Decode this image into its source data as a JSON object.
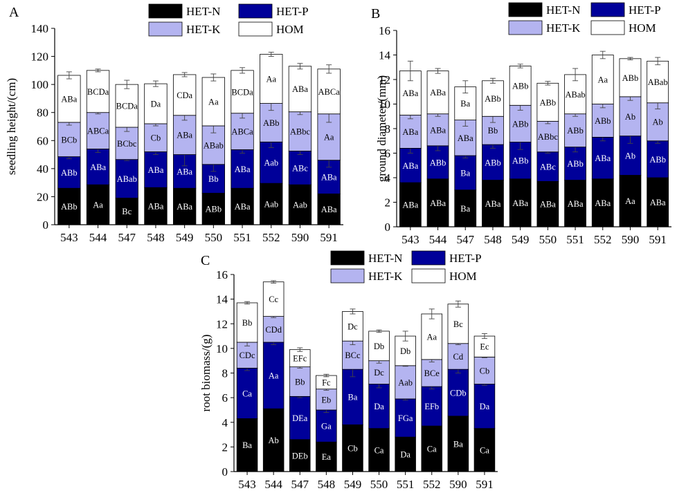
{
  "colors": {
    "HET-N": "#000000",
    "HET-P": "#000099",
    "HET-K": "#b4b4f0",
    "HOM": "#ffffff"
  },
  "chart_data": [
    {
      "panel_label": "A",
      "type": "bar",
      "stacked": true,
      "ylabel": "seedling height/(cm)",
      "xlabel": "",
      "ylim": [
        0,
        140
      ],
      "yticks": [
        "0",
        "20",
        "40",
        "60",
        "80",
        "100",
        "120",
        "140"
      ],
      "categories": [
        "543",
        "544",
        "547",
        "548",
        "549",
        "550",
        "551",
        "552",
        "590",
        "591"
      ],
      "legend": {
        "placement": "top-right",
        "rows": [
          [
            "HET-N",
            "HET-P"
          ],
          [
            "HET-K",
            "HOM"
          ]
        ]
      },
      "series": [
        {
          "name": "HET-N",
          "cumulative_top": [
            26,
            28.5,
            19,
            26.5,
            26,
            22.5,
            26,
            29.5,
            28.5,
            22
          ],
          "labels": [
            "ABb",
            "Aa",
            "Bc",
            "ABa",
            "ABa",
            "ABb",
            "ABa",
            "Aab",
            "Aab",
            "ABa"
          ]
        },
        {
          "name": "HET-P",
          "cumulative_top": [
            48.5,
            54,
            46.5,
            52,
            50,
            43,
            53.5,
            59,
            52.5,
            46
          ],
          "error": [
            1.5,
            2.5,
            0.8,
            2,
            8,
            5,
            2.5,
            4,
            2.5,
            5
          ],
          "labels": [
            "ABb",
            "ABa",
            "ABab",
            "ABa",
            "ABa",
            "Bb",
            "ABa",
            "Aab",
            "ABc",
            "ABa"
          ]
        },
        {
          "name": "HET-K",
          "cumulative_top": [
            73,
            80,
            69.5,
            72,
            78,
            70.5,
            79.5,
            86.5,
            80.5,
            79
          ],
          "error": [
            2,
            1,
            3,
            1.5,
            3.5,
            5,
            3.5,
            5,
            2,
            6
          ],
          "labels": [
            "BCb",
            "ABCa",
            "BCbc",
            "Cb",
            "ABa",
            "ABab",
            "ABCa",
            "ABb",
            "ABbc",
            "Aa"
          ]
        },
        {
          "name": "HOM",
          "cumulative_top": [
            106.5,
            110,
            100,
            100.5,
            107,
            105,
            110,
            121.5,
            113,
            111
          ],
          "error": [
            2.5,
            1,
            3,
            2,
            1.5,
            2.5,
            2,
            1.5,
            2,
            3
          ],
          "labels": [
            "ABa",
            "BCDa",
            "BCDa",
            "Da",
            "CDa",
            "Aa",
            "BCDa",
            "Aa",
            "ABa",
            "ABCa"
          ]
        }
      ]
    },
    {
      "panel_label": "B",
      "type": "bar",
      "stacked": true,
      "ylabel": "ground diameter/(mm)",
      "xlabel": "",
      "ylim": [
        0,
        16
      ],
      "yticks": [
        "0",
        "2",
        "4",
        "6",
        "8",
        "10",
        "12",
        "14",
        "16"
      ],
      "categories": [
        "543",
        "544",
        "547",
        "548",
        "549",
        "550",
        "551",
        "552",
        "590",
        "591"
      ],
      "legend": {
        "placement": "top-right",
        "rows": [
          [
            "HET-N",
            "HET-P"
          ],
          [
            "HET-K",
            "HOM"
          ]
        ]
      },
      "series": [
        {
          "name": "HET-N",
          "cumulative_top": [
            3.6,
            3.9,
            3.0,
            3.8,
            3.9,
            3.7,
            3.8,
            3.9,
            4.2,
            4.0
          ],
          "labels": [
            "ABa",
            "ABa",
            "Ba",
            "ABa",
            "ABa",
            "ABa",
            "ABa",
            "ABa",
            "Aa",
            "ABa"
          ]
        },
        {
          "name": "HET-P",
          "cumulative_top": [
            6.4,
            6.6,
            5.8,
            6.7,
            6.9,
            6.1,
            6.5,
            7.3,
            7.4,
            7.0
          ],
          "error": [
            0.4,
            0.4,
            0.2,
            0.3,
            0.6,
            0.1,
            0.4,
            0.3,
            0.6,
            0.2
          ],
          "labels": [
            "ABa",
            "ABb",
            "Ba",
            "ABb",
            "ABb",
            "ABc",
            "ABb",
            "ABa",
            "Ab",
            "ABb"
          ]
        },
        {
          "name": "HET-K",
          "cumulative_top": [
            9.1,
            9.2,
            8.7,
            9.0,
            9.9,
            8.6,
            9.2,
            10.0,
            10.6,
            10.1
          ],
          "error": [
            0.3,
            0.2,
            0.5,
            0.5,
            0.4,
            0.2,
            0.2,
            0.3,
            0.3,
            0.5
          ],
          "labels": [
            "ABa",
            "ABa",
            "ABa",
            "Bb",
            "ABb",
            "ABbc",
            "ABb",
            "ABb",
            "Ab",
            "Ab"
          ]
        },
        {
          "name": "HOM",
          "cumulative_top": [
            12.7,
            12.7,
            11.4,
            11.9,
            13.1,
            11.7,
            12.4,
            14.0,
            13.7,
            13.5
          ],
          "error": [
            0.8,
            0.2,
            0.5,
            0.2,
            0.15,
            0.15,
            0.5,
            0.3,
            0.1,
            0.3
          ],
          "labels": [
            "ABa",
            "ABa",
            "Ba",
            "ABb",
            "ABb",
            "ABb",
            "ABab",
            "Aa",
            "ABb",
            "ABab"
          ]
        }
      ]
    },
    {
      "panel_label": "C",
      "type": "bar",
      "stacked": true,
      "ylabel": "root biomass/(g)",
      "xlabel": "",
      "ylim": [
        0,
        16
      ],
      "yticks": [
        "0",
        "2",
        "4",
        "6",
        "8",
        "10",
        "12",
        "14",
        "16"
      ],
      "categories": [
        "543",
        "544",
        "547",
        "548",
        "549",
        "550",
        "551",
        "552",
        "590",
        "591"
      ],
      "legend": {
        "placement": "top-right",
        "rows": [
          [
            "HET-N",
            "HET-P"
          ],
          [
            "HET-K",
            "HOM"
          ]
        ]
      },
      "series": [
        {
          "name": "HET-N",
          "cumulative_top": [
            4.3,
            5.1,
            2.6,
            2.4,
            3.8,
            3.5,
            2.8,
            3.7,
            4.5,
            3.5
          ],
          "labels": [
            "Ba",
            "Ab",
            "DEb",
            "Ea",
            "Cb",
            "Ca",
            "Da",
            "Ca",
            "Ba",
            "Ca"
          ]
        },
        {
          "name": "HET-P",
          "cumulative_top": [
            8.4,
            10.5,
            6.1,
            5.0,
            8.3,
            7.1,
            5.9,
            6.9,
            8.3,
            7.1
          ],
          "error": [
            0.2,
            0.2,
            0.1,
            0.2,
            0.6,
            0.3,
            0.1,
            0.2,
            0.3,
            0.1
          ],
          "labels": [
            "Ca",
            "Aa",
            "DEa",
            "Ga",
            "Ba",
            "Da",
            "FGa",
            "EFb",
            "CDb",
            "Da"
          ]
        },
        {
          "name": "HET-K",
          "cumulative_top": [
            10.5,
            12.6,
            8.5,
            6.7,
            10.6,
            9.0,
            8.6,
            9.1,
            10.4,
            9.3
          ],
          "error": [
            0.3,
            0.1,
            0.1,
            0.1,
            0.3,
            0.2,
            0.05,
            0.2,
            0.1,
            0.05
          ],
          "labels": [
            "CDc",
            "CDd",
            "Bb",
            "Eb",
            "BCc",
            "Dc",
            "Aab",
            "BCe",
            "Cd",
            "Cb"
          ]
        },
        {
          "name": "HOM",
          "cumulative_top": [
            13.7,
            15.4,
            9.9,
            7.8,
            13.0,
            11.4,
            11.0,
            12.8,
            13.6,
            11.0
          ],
          "error": [
            0.1,
            0.1,
            0.15,
            0.1,
            0.2,
            0.1,
            0.4,
            0.4,
            0.25,
            0.2
          ],
          "labels": [
            "Bb",
            "Cc",
            "EFc",
            "Fc",
            "Dc",
            "Db",
            "Db",
            "Aa",
            "Bc",
            "Ec"
          ]
        }
      ]
    }
  ]
}
